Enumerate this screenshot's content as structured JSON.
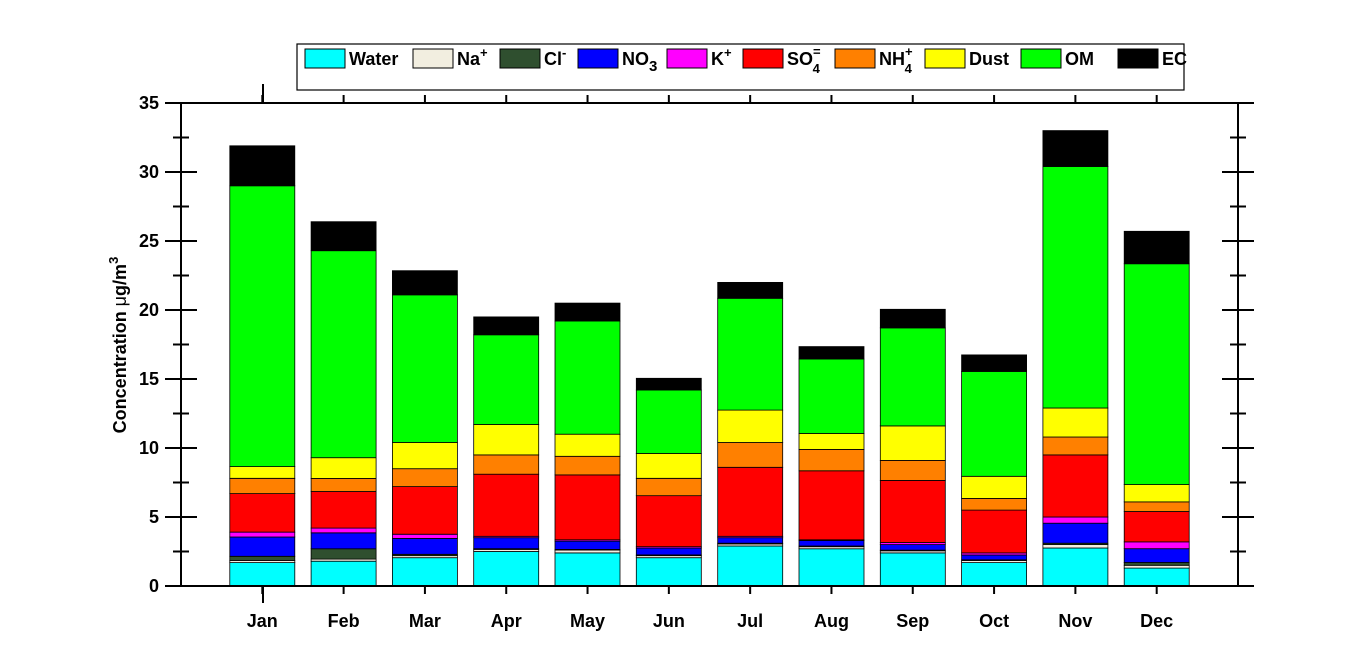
{
  "chart_data": {
    "type": "bar",
    "stacked": true,
    "xlabel": "",
    "ylabel_prefix": "Concentration ",
    "ylabel_mu": "μ",
    "ylabel_unit": "g/m",
    "ylabel_sup": "3",
    "ylim": [
      0,
      35
    ],
    "yticks": [
      "0",
      "5",
      "10",
      "15",
      "20",
      "25",
      "30",
      "35"
    ],
    "categories": [
      "Jan",
      "Feb",
      "Mar",
      "Apr",
      "May",
      "Jun",
      "Jul",
      "Aug",
      "Sep",
      "Oct",
      "Nov",
      "Dec"
    ],
    "legend_position": "top",
    "series": [
      {
        "name": "Water",
        "color": "#00FFFF",
        "values": [
          1.7,
          1.8,
          2.05,
          2.5,
          2.4,
          2.05,
          2.9,
          2.7,
          2.4,
          1.7,
          2.75,
          1.3
        ]
      },
      {
        "name": "Na",
        "sup": "+",
        "color": "#F2EEE0",
        "values": [
          0.15,
          0.15,
          0.15,
          0.15,
          0.2,
          0.15,
          0.15,
          0.15,
          0.15,
          0.15,
          0.25,
          0.2
        ]
      },
      {
        "name": "Cl",
        "sup": "-",
        "color": "#2F4F2F",
        "values": [
          0.3,
          0.75,
          0.1,
          0.05,
          0.05,
          0.05,
          0.05,
          0.05,
          0.05,
          0.05,
          0.1,
          0.2
        ]
      },
      {
        "name": "NO",
        "sub": "3",
        "color": "#0000FF",
        "values": [
          1.4,
          1.15,
          1.15,
          0.8,
          0.6,
          0.5,
          0.4,
          0.4,
          0.4,
          0.35,
          1.45,
          1.0
        ]
      },
      {
        "name": "K",
        "sup": "+",
        "color": "#FF00FF",
        "values": [
          0.35,
          0.35,
          0.3,
          0.1,
          0.1,
          0.1,
          0.1,
          0.05,
          0.15,
          0.15,
          0.45,
          0.5
        ]
      },
      {
        "name": "SO",
        "sub": "4",
        "sup": "=",
        "color": "#FF0000",
        "values": [
          2.8,
          2.65,
          3.45,
          4.5,
          4.7,
          3.7,
          5.0,
          5.0,
          4.5,
          3.1,
          4.5,
          2.2
        ]
      },
      {
        "name": "NH",
        "sub": "4",
        "sup": "+",
        "color": "#FF8000",
        "values": [
          1.1,
          0.95,
          1.3,
          1.4,
          1.35,
          1.25,
          1.8,
          1.55,
          1.45,
          0.85,
          1.3,
          0.7
        ]
      },
      {
        "name": "Dust",
        "color": "#FFFF00",
        "values": [
          0.85,
          1.5,
          1.9,
          2.2,
          1.6,
          1.8,
          2.35,
          1.15,
          2.5,
          1.6,
          2.1,
          1.25
        ]
      },
      {
        "name": "OM",
        "color": "#00FF00",
        "values": [
          20.35,
          15.0,
          10.7,
          6.5,
          8.2,
          4.6,
          8.1,
          5.4,
          7.1,
          7.6,
          17.5,
          16.0
        ]
      },
      {
        "name": "EC",
        "color": "#000000",
        "values": [
          2.9,
          2.1,
          1.75,
          1.3,
          1.3,
          0.85,
          1.15,
          0.9,
          1.35,
          1.2,
          2.6,
          2.35
        ]
      }
    ]
  }
}
